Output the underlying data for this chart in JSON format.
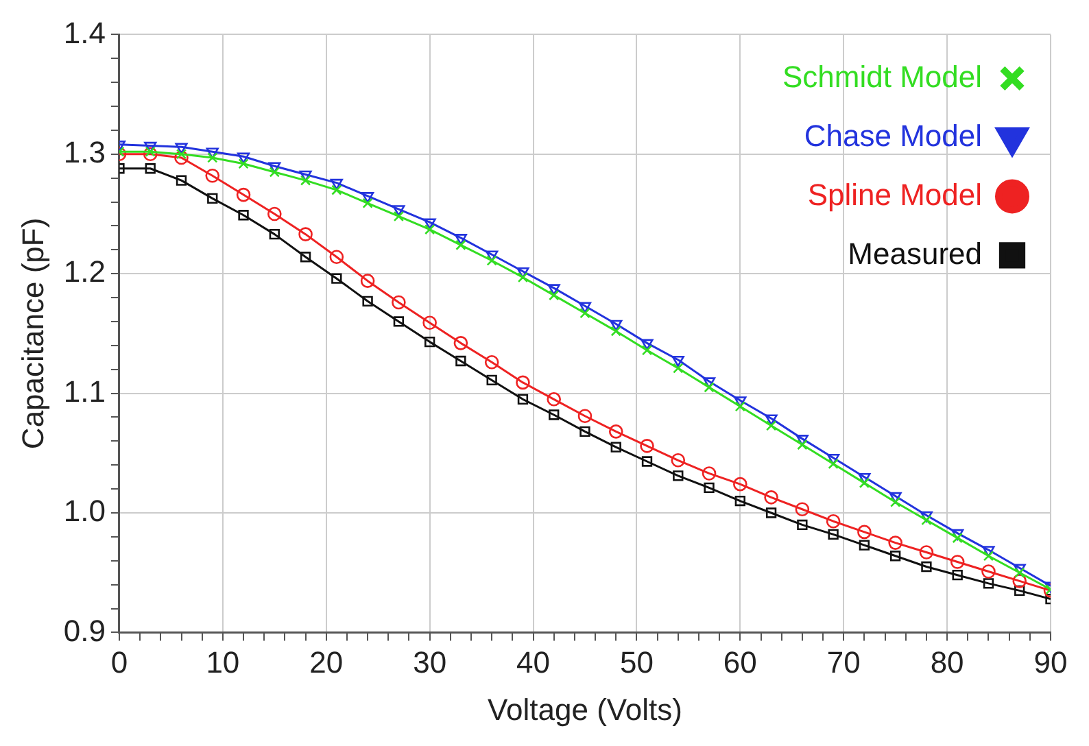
{
  "chart_data": {
    "type": "line",
    "xlabel": "Voltage (Volts)",
    "ylabel": "Capacitance (pF)",
    "x": [
      0,
      3,
      6,
      9,
      12,
      15,
      18,
      21,
      24,
      27,
      30,
      33,
      36,
      39,
      42,
      45,
      48,
      51,
      54,
      57,
      60,
      63,
      66,
      69,
      72,
      75,
      78,
      81,
      84,
      87,
      90
    ],
    "xlim": [
      0,
      90
    ],
    "xticks": [
      0,
      {
        "value": 2,
        "label": null
      },
      {
        "value": 4,
        "label": null
      },
      {
        "value": 6,
        "label": null
      },
      {
        "value": 8,
        "label": null
      },
      10,
      {
        "value": 12,
        "label": null
      },
      {
        "value": 14,
        "label": null
      },
      {
        "value": 16,
        "label": null
      },
      {
        "value": 18,
        "label": null
      },
      20,
      {
        "value": 22,
        "label": null
      },
      {
        "value": 24,
        "label": null
      },
      {
        "value": 26,
        "label": null
      },
      {
        "value": 28,
        "label": null
      },
      30,
      {
        "value": 32,
        "label": null
      },
      {
        "value": 34,
        "label": null
      },
      {
        "value": 36,
        "label": null
      },
      {
        "value": 38,
        "label": null
      },
      40,
      {
        "value": 42,
        "label": null
      },
      {
        "value": 44,
        "label": null
      },
      {
        "value": 46,
        "label": null
      },
      {
        "value": 48,
        "label": null
      },
      50,
      {
        "value": 52,
        "label": null
      },
      {
        "value": 54,
        "label": null
      },
      {
        "value": 56,
        "label": null
      },
      {
        "value": 58,
        "label": null
      },
      60,
      {
        "value": 62,
        "label": null
      },
      {
        "value": 64,
        "label": null
      },
      {
        "value": 66,
        "label": null
      },
      {
        "value": 68,
        "label": null
      },
      70,
      {
        "value": 72,
        "label": null
      },
      {
        "value": 74,
        "label": null
      },
      {
        "value": 76,
        "label": null
      },
      {
        "value": 78,
        "label": null
      },
      80,
      {
        "value": 82,
        "label": null
      },
      {
        "value": 84,
        "label": null
      },
      {
        "value": 86,
        "label": null
      },
      {
        "value": 88,
        "label": null
      },
      90
    ],
    "ylim": [
      0.9,
      1.4
    ],
    "yticks": [
      0.9,
      {
        "value": 0.92,
        "label": null
      },
      {
        "value": 0.94,
        "label": null
      },
      {
        "value": 0.96,
        "label": null
      },
      {
        "value": 0.98,
        "label": null
      },
      {
        "value": 1,
        "label": "1.0"
      },
      {
        "value": 1.02,
        "label": null
      },
      {
        "value": 1.04,
        "label": null
      },
      {
        "value": 1.06,
        "label": null
      },
      {
        "value": 1.08,
        "label": null
      },
      1.1,
      {
        "value": 1.12,
        "label": null
      },
      {
        "value": 1.14,
        "label": null
      },
      {
        "value": 1.16,
        "label": null
      },
      {
        "value": 1.18,
        "label": null
      },
      1.2,
      {
        "value": 1.22,
        "label": null
      },
      {
        "value": 1.24,
        "label": null
      },
      {
        "value": 1.26,
        "label": null
      },
      {
        "value": 1.28,
        "label": null
      },
      1.3,
      {
        "value": 1.32,
        "label": null
      },
      {
        "value": 1.34,
        "label": null
      },
      {
        "value": 1.36,
        "label": null
      },
      {
        "value": 1.38,
        "label": null
      },
      1.4
    ],
    "grid": true,
    "legend": "top right",
    "line_style": "solid",
    "series": [
      {
        "name": "Schmidt Model",
        "color": "#33dd22",
        "marker": "cross",
        "values": [
          1.302,
          1.302,
          1.3,
          1.297,
          1.292,
          1.285,
          1.278,
          1.27,
          1.259,
          1.248,
          1.237,
          1.224,
          1.211,
          1.197,
          1.182,
          1.167,
          1.152,
          1.136,
          1.121,
          1.105,
          1.089,
          1.073,
          1.057,
          1.041,
          1.025,
          1.009,
          0.994,
          0.979,
          0.964,
          0.95,
          0.936
        ]
      },
      {
        "name": "Chase Model",
        "color": "#2233dd",
        "marker": "triangle",
        "values": [
          1.308,
          1.307,
          1.306,
          1.302,
          1.298,
          1.29,
          1.283,
          1.276,
          1.265,
          1.254,
          1.243,
          1.23,
          1.216,
          1.202,
          1.188,
          1.173,
          1.158,
          1.142,
          1.128,
          1.11,
          1.094,
          1.079,
          1.062,
          1.046,
          1.03,
          1.014,
          0.998,
          0.983,
          0.969,
          0.954,
          0.939
        ]
      },
      {
        "name": "Spline Model",
        "color": "#ee2222",
        "marker": "circle",
        "values": [
          1.3,
          1.3,
          1.297,
          1.282,
          1.266,
          1.25,
          1.233,
          1.214,
          1.194,
          1.176,
          1.159,
          1.142,
          1.126,
          1.109,
          1.095,
          1.081,
          1.068,
          1.056,
          1.044,
          1.033,
          1.024,
          1.013,
          1.003,
          0.993,
          0.984,
          0.975,
          0.967,
          0.959,
          0.951,
          0.943,
          0.935
        ]
      },
      {
        "name": "Measured",
        "color": "#111111",
        "marker": "square",
        "values": [
          1.288,
          1.288,
          1.278,
          1.263,
          1.249,
          1.233,
          1.214,
          1.196,
          1.177,
          1.16,
          1.143,
          1.127,
          1.111,
          1.095,
          1.082,
          1.068,
          1.055,
          1.043,
          1.031,
          1.021,
          1.01,
          1.0,
          0.99,
          0.982,
          0.973,
          0.964,
          0.955,
          0.948,
          0.941,
          0.935,
          0.928
        ]
      }
    ]
  }
}
